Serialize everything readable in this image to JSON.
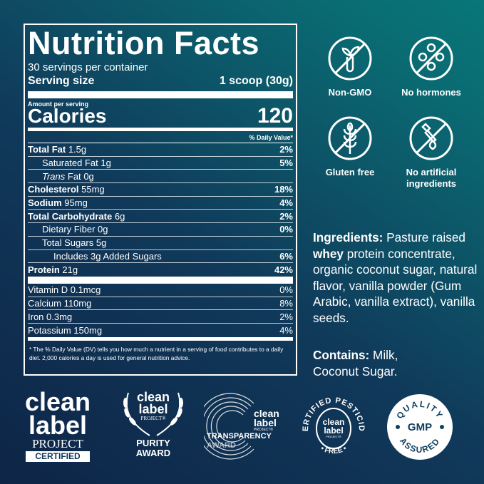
{
  "label": {
    "title": "Nutrition Facts",
    "servings": "30 servings per container",
    "serving_size_label": "Serving size",
    "serving_size_value": "1 scoop (30g)",
    "amount_per_serving": "Amount per serving",
    "calories_label": "Calories",
    "calories_value": "120",
    "dv_header": "% Daily Value*",
    "rows": [
      {
        "name": "Total Fat",
        "amount": "1.5g",
        "dv": "2%"
      },
      {
        "name": "Saturated Fat",
        "amount": "1g",
        "dv": "5%"
      },
      {
        "name": "Trans",
        "name2": "Fat",
        "amount": "0g",
        "dv": ""
      },
      {
        "name": "Cholesterol",
        "amount": "55mg",
        "dv": "18%"
      },
      {
        "name": "Sodium",
        "amount": "95mg",
        "dv": "4%"
      },
      {
        "name": "Total Carbohydrate",
        "amount": "6g",
        "dv": "2%"
      },
      {
        "name": "Dietary Fiber",
        "amount": "0g",
        "dv": "0%"
      },
      {
        "name": "Total Sugars",
        "amount": "5g",
        "dv": ""
      },
      {
        "name": "Includes 3g Added Sugars",
        "amount": "",
        "dv": "6%"
      },
      {
        "name": "Protein",
        "amount": "21g",
        "dv": "42%"
      }
    ],
    "vitamins": [
      {
        "text": "Vitamin D 0.1mcg",
        "dv": "0%"
      },
      {
        "text": "Calcium 110mg",
        "dv": "8%"
      },
      {
        "text": "Iron 0.3mg",
        "dv": "2%"
      },
      {
        "text": "Potassium 150mg",
        "dv": "4%"
      }
    ],
    "footnote": "* The % Daily Value (DV) tells you how much a nutrient in a serving of food contributes to a daily diet. 2,000 calories a day is used for general nutrition advice."
  },
  "claims": [
    {
      "icon": "no-gmo-icon",
      "label": "Non-GMO"
    },
    {
      "icon": "no-hormones-icon",
      "label": "No hormones"
    },
    {
      "icon": "gluten-free-icon",
      "label": "Gluten free"
    },
    {
      "icon": "no-artificial-icon",
      "label": "No artificial ingredients"
    }
  ],
  "ingredients": {
    "heading": "Ingredients:",
    "t1": " Pasture raised ",
    "bold": "whey",
    "t2": " protein concentrate, organic coconut sugar, natural flavor, vanilla powder (Gum Arabic, vanilla extract), vanilla seeds."
  },
  "contains": {
    "heading": "Contains:",
    "t1": " Milk,",
    "t2": "Coconut Sugar."
  },
  "badges": {
    "clp": {
      "l1": "clean",
      "l2": "label",
      "l3": "PROJECT",
      "l4": "CERTIFIED"
    },
    "purity": {
      "l1": "clean",
      "l2": "label",
      "l3": "PROJECT®",
      "l4": "PURITY",
      "l5": "AWARD"
    },
    "transparency": {
      "l1": "clean",
      "l2": "label",
      "l3": "PROJECT®",
      "l4": "TRANSPARENCY",
      "l5": "AWARD"
    },
    "pesticide": {
      "ring_top": "CERTIFIED PESTICIDE",
      "ring_bottom": "• FREE •",
      "l1": "clean",
      "l2": "label",
      "l3": "PROJECT®"
    },
    "gmp": {
      "top": "QUALITY",
      "mid": "GMP",
      "bottom": "ASSURED"
    }
  },
  "colors": {
    "bg_dark": "#0e2547",
    "bg_teal": "#08777a",
    "text": "#ffffff"
  }
}
